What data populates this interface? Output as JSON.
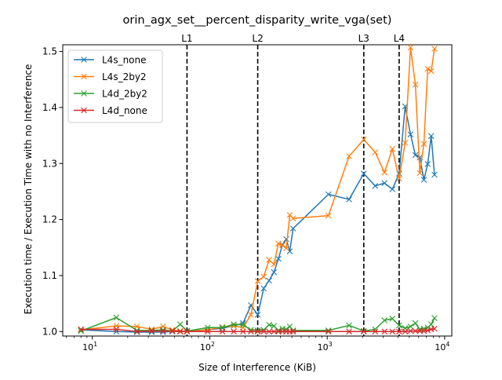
{
  "chart_data": {
    "type": "line",
    "title": "orin_agx_set__percent_disparity_write_vga(set)",
    "xlabel": "Size of Interference (KiB)",
    "ylabel": "Execution time / Execution Time with no Interference",
    "xscale": "log",
    "xlim": [
      5.6,
      11500
    ],
    "ylim": [
      0.992,
      1.512
    ],
    "grid": false,
    "legend_position": "top-left",
    "x_ticks": [
      {
        "value": 10,
        "base": "10",
        "exp": "1"
      },
      {
        "value": 100,
        "base": "10",
        "exp": "2"
      },
      {
        "value": 1000,
        "base": "10",
        "exp": "3"
      },
      {
        "value": 10000,
        "base": "10",
        "exp": "4"
      }
    ],
    "y_ticks": [
      {
        "value": 1.0,
        "label": "1.0"
      },
      {
        "value": 1.1,
        "label": "1.1"
      },
      {
        "value": 1.2,
        "label": "1.2"
      },
      {
        "value": 1.3,
        "label": "1.3"
      },
      {
        "value": 1.4,
        "label": "1.4"
      },
      {
        "value": 1.5,
        "label": "1.5"
      }
    ],
    "cache_lines": [
      {
        "label": "L1",
        "x": 64
      },
      {
        "label": "L2",
        "x": 256
      },
      {
        "label": "L3",
        "x": 2048
      },
      {
        "label": "L4",
        "x": 4096
      }
    ],
    "series": [
      {
        "name": "L4s_none",
        "color": "#1f77b4",
        "points": [
          [
            8,
            1.003
          ],
          [
            16,
            1.0
          ],
          [
            24,
            0.999
          ],
          [
            32,
            0.999
          ],
          [
            40,
            0.999
          ],
          [
            48,
            1.0
          ],
          [
            56,
            1.0
          ],
          [
            64,
            1.001
          ],
          [
            96,
            1.003
          ],
          [
            128,
            1.006
          ],
          [
            160,
            1.01
          ],
          [
            192,
            1.015
          ],
          [
            224,
            1.047
          ],
          [
            256,
            1.03
          ],
          [
            288,
            1.077
          ],
          [
            320,
            1.091
          ],
          [
            352,
            1.106
          ],
          [
            384,
            1.13
          ],
          [
            416,
            1.155
          ],
          [
            448,
            1.165
          ],
          [
            480,
            1.143
          ],
          [
            512,
            1.184
          ],
          [
            1024,
            1.245
          ],
          [
            1536,
            1.236
          ],
          [
            2048,
            1.282
          ],
          [
            2560,
            1.26
          ],
          [
            3072,
            1.265
          ],
          [
            3584,
            1.254
          ],
          [
            4096,
            1.282
          ],
          [
            4608,
            1.402
          ],
          [
            5120,
            1.352
          ],
          [
            5632,
            1.315
          ],
          [
            6144,
            1.311
          ],
          [
            6656,
            1.271
          ],
          [
            7168,
            1.299
          ],
          [
            7680,
            1.349
          ],
          [
            8192,
            1.28
          ]
        ]
      },
      {
        "name": "L4s_2by2",
        "color": "#ff7f0e",
        "points": [
          [
            8,
            1.003
          ],
          [
            16,
            1.01
          ],
          [
            24,
            1.009
          ],
          [
            32,
            1.004
          ],
          [
            40,
            1.009
          ],
          [
            48,
            1.003
          ],
          [
            56,
            1.001
          ],
          [
            64,
            1.0
          ],
          [
            96,
            1.003
          ],
          [
            128,
            1.008
          ],
          [
            160,
            1.01
          ],
          [
            192,
            1.007
          ],
          [
            224,
            1.03
          ],
          [
            256,
            1.09
          ],
          [
            288,
            1.098
          ],
          [
            320,
            1.128
          ],
          [
            352,
            1.12
          ],
          [
            384,
            1.157
          ],
          [
            416,
            1.154
          ],
          [
            448,
            1.149
          ],
          [
            480,
            1.208
          ],
          [
            512,
            1.202
          ],
          [
            1024,
            1.207
          ],
          [
            1536,
            1.313
          ],
          [
            2048,
            1.343
          ],
          [
            2560,
            1.32
          ],
          [
            3072,
            1.284
          ],
          [
            3584,
            1.326
          ],
          [
            4096,
            1.273
          ],
          [
            4608,
            1.337
          ],
          [
            5120,
            1.507
          ],
          [
            5632,
            1.441
          ],
          [
            6144,
            1.283
          ],
          [
            6656,
            1.335
          ],
          [
            7168,
            1.469
          ],
          [
            7680,
            1.465
          ],
          [
            8192,
            1.505
          ]
        ]
      },
      {
        "name": "L4d_2by2",
        "color": "#2ca02c",
        "points": [
          [
            8,
            1.001
          ],
          [
            16,
            1.025
          ],
          [
            24,
            1.002
          ],
          [
            32,
            1.002
          ],
          [
            40,
            1.003
          ],
          [
            48,
            1.001
          ],
          [
            56,
            1.013
          ],
          [
            64,
            1.001
          ],
          [
            96,
            1.007
          ],
          [
            128,
            1.007
          ],
          [
            160,
            1.013
          ],
          [
            192,
            1.012
          ],
          [
            224,
            1.003
          ],
          [
            256,
            1.002
          ],
          [
            288,
            1.003
          ],
          [
            320,
            1.012
          ],
          [
            352,
            1.01
          ],
          [
            384,
            1.002
          ],
          [
            416,
            1.005
          ],
          [
            448,
            1.004
          ],
          [
            480,
            1.009
          ],
          [
            512,
            1.002
          ],
          [
            1024,
            1.002
          ],
          [
            1536,
            1.011
          ],
          [
            2048,
            1.001
          ],
          [
            2560,
            1.004
          ],
          [
            3072,
            1.02
          ],
          [
            3584,
            1.023
          ],
          [
            4096,
            1.011
          ],
          [
            4608,
            1.006
          ],
          [
            5120,
            1.009
          ],
          [
            5632,
            1.015
          ],
          [
            6144,
            1.004
          ],
          [
            6656,
            1.005
          ],
          [
            7168,
            1.007
          ],
          [
            7680,
            1.013
          ],
          [
            8192,
            1.024
          ]
        ]
      },
      {
        "name": "L4d_none",
        "color": "#d62728",
        "points": [
          [
            8,
            1.004
          ],
          [
            16,
            1.004
          ],
          [
            24,
            1.0
          ],
          [
            32,
            1.001
          ],
          [
            40,
            1.001
          ],
          [
            48,
            1.001
          ],
          [
            56,
            1.0
          ],
          [
            64,
            1.0
          ],
          [
            96,
            1.0
          ],
          [
            128,
            1.0
          ],
          [
            160,
            1.0
          ],
          [
            192,
            1.0
          ],
          [
            224,
            1.0
          ],
          [
            256,
            1.0
          ],
          [
            288,
            1.0
          ],
          [
            320,
            1.0
          ],
          [
            352,
            1.0
          ],
          [
            384,
            1.0
          ],
          [
            416,
            1.0
          ],
          [
            448,
            1.0
          ],
          [
            480,
            1.0
          ],
          [
            512,
            1.0
          ],
          [
            1024,
            1.0
          ],
          [
            1536,
            1.0
          ],
          [
            2048,
            1.0
          ],
          [
            2560,
            1.0
          ],
          [
            3072,
            1.0
          ],
          [
            3584,
            1.0
          ],
          [
            4096,
            1.0
          ],
          [
            4608,
            1.0
          ],
          [
            5120,
            1.001
          ],
          [
            5632,
            1.001
          ],
          [
            6144,
            1.001
          ],
          [
            6656,
            1.001
          ],
          [
            7168,
            1.002
          ],
          [
            7680,
            1.004
          ],
          [
            8192,
            1.005
          ]
        ]
      }
    ]
  }
}
